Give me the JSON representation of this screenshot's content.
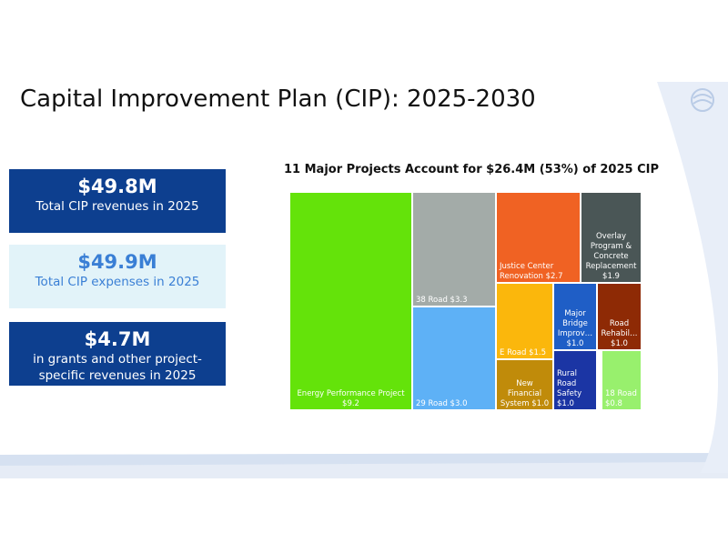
{
  "slide": {
    "title": "Capital Improvement Plan (CIP): 2025-2030"
  },
  "stats": [
    {
      "value": "$49.8M",
      "caption": "Total CIP revenues in 2025"
    },
    {
      "value": "$49.9M",
      "caption": "Total CIP expenses in 2025"
    },
    {
      "value": "$4.7M",
      "caption": "in grants and other project-specific revenues in 2025"
    }
  ],
  "colors": {
    "dark_box": "#0d3f8f",
    "light_box": "#e2f3f9",
    "light_box_text": "#3a7fd5",
    "background_swoosh": "#e8eef8"
  },
  "logo": {
    "icon": "city-logo-icon"
  },
  "chart_data": {
    "type": "treemap",
    "title": "11 Major Projects Account for $26.4M (53%) of 2025 CIP",
    "unit": "$M",
    "items": [
      {
        "label": "Energy Performance Project $9.2",
        "name": "Energy Performance Project",
        "value": 9.2,
        "color": "#64e30a",
        "text_color": "#ffffff"
      },
      {
        "label": "38 Road $3.3",
        "name": "38 Road",
        "value": 3.3,
        "color": "#a3aba8",
        "text_color": "#ffffff"
      },
      {
        "label": "29 Road $3.0",
        "name": "29 Road",
        "value": 3.0,
        "color": "#5eb1f6",
        "text_color": "#ffffff"
      },
      {
        "label": "Justice Center Renovation $2.7",
        "name": "Justice Center Renovation",
        "value": 2.7,
        "color": "#f06223",
        "text_color": "#ffffff"
      },
      {
        "label": "Overlay Program & Concrete Replacement $1.9",
        "name": "Overlay Program & Concrete Replacement",
        "value": 1.9,
        "color": "#4a5656",
        "text_color": "#ffffff"
      },
      {
        "label": "E Road $1.5",
        "name": "E Road",
        "value": 1.5,
        "color": "#fbb70c",
        "text_color": "#ffffff"
      },
      {
        "label": "Major Bridge Improv… $1.0",
        "name": "Major Bridge Improv…",
        "value": 1.0,
        "color": "#1f5ec6",
        "text_color": "#ffffff"
      },
      {
        "label": "Road Rehabil… $1.0",
        "name": "Road Rehabil…",
        "value": 1.0,
        "color": "#8e2a05",
        "text_color": "#ffffff"
      },
      {
        "label": "New Financial System $1.0",
        "name": "New Financial System",
        "value": 1.0,
        "color": "#c08b0a",
        "text_color": "#ffffff"
      },
      {
        "label": "Rural Road Safety $1.0",
        "name": "Rural Road Safety",
        "value": 1.0,
        "color": "#1b35a4",
        "text_color": "#ffffff"
      },
      {
        "label": "18 Road $0.8",
        "name": "18 Road",
        "value": 0.8,
        "color": "#98f06d",
        "text_color": "#ffffff"
      }
    ]
  }
}
